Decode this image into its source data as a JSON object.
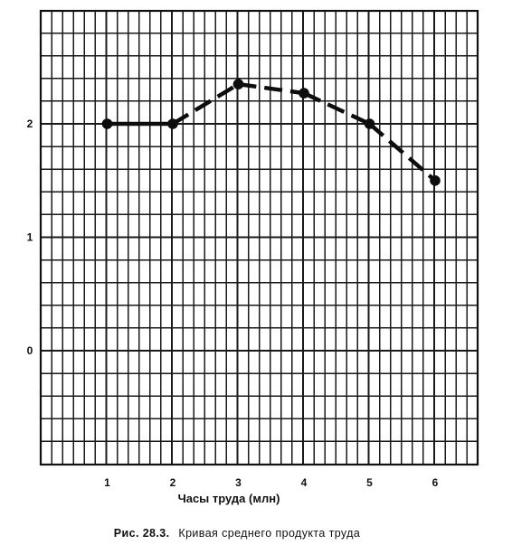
{
  "chart_data": {
    "type": "line",
    "title": "",
    "xlabel": "Часы труда (млн)",
    "ylabel": "",
    "x": [
      1,
      2,
      3,
      4,
      5,
      6
    ],
    "x_ticks": [
      "1",
      "2",
      "3",
      "4",
      "5",
      "6"
    ],
    "y_ticks": [
      "0",
      "1",
      "2"
    ],
    "series": [
      {
        "values": [
          2.0,
          2.0,
          2.35,
          2.27,
          2.0,
          1.5
        ],
        "line_style": "dashed-after-x2",
        "color": "#0d0d0d"
      }
    ],
    "xlim": [
      0,
      6.6
    ],
    "ylim": [
      -1,
      3
    ],
    "grid": true
  },
  "caption": {
    "number": "Рис. 28.3.",
    "text": "Кривая среднего продукта труда"
  }
}
